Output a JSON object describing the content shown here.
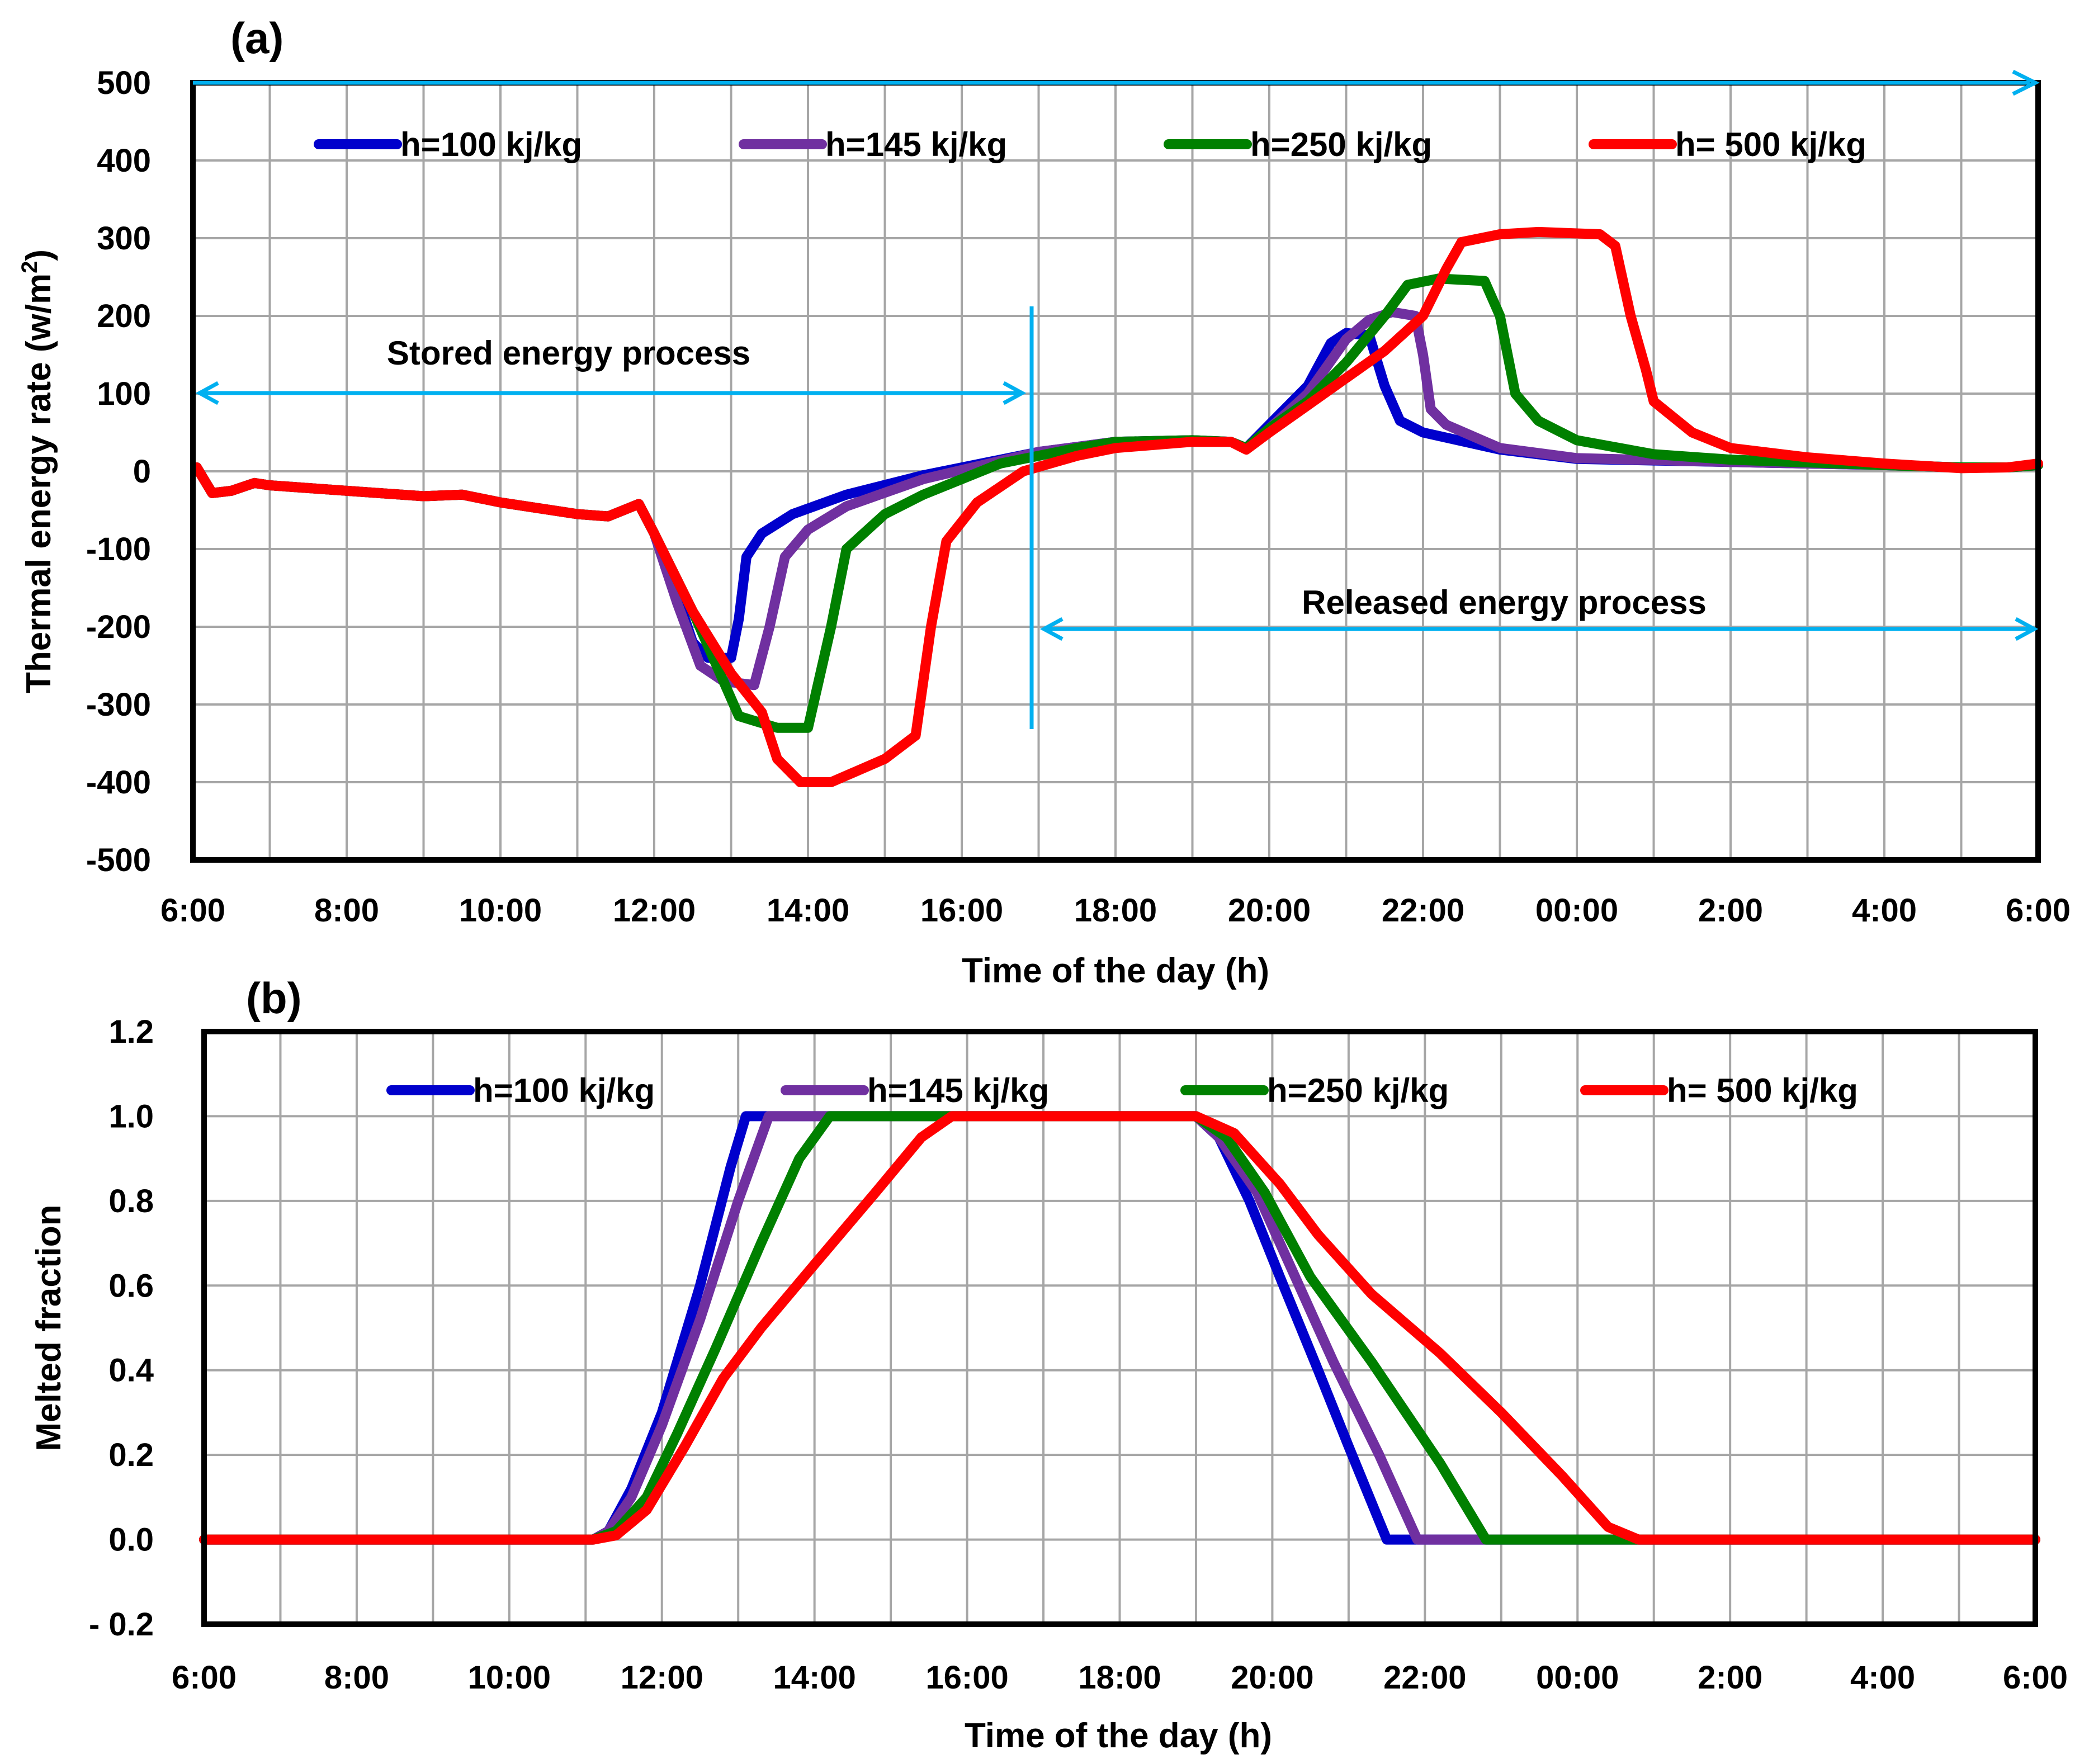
{
  "chart_data": [
    {
      "type": "line",
      "panel_label": "(a)",
      "xlabel": "Time of the day (h)",
      "ylabel": "Thermal energy  rate (w/m²)",
      "ylabel_main": "Thermal energy  rate (w/m",
      "ylabel_sup": "2",
      "ylabel_tail": ")",
      "x_tick_labels": [
        "6:00",
        "8:00",
        "10:00",
        "12:00",
        "14:00",
        "16:00",
        "18:00",
        "20:00",
        "22:00",
        "00:00",
        "2:00",
        "4:00",
        "6:00"
      ],
      "xlim": [
        6,
        30
      ],
      "ylim": [
        -500,
        500
      ],
      "y_ticks": [
        "500",
        "400",
        "300",
        "200",
        "100",
        "0",
        "-100",
        "-200",
        "-300",
        "-400",
        "-500"
      ],
      "grid": true,
      "legend_position": "top",
      "annotations": [
        {
          "text": "Stored energy process",
          "from": 6,
          "to": 16.85,
          "y": 100
        },
        {
          "text": "Released energy process",
          "from": 17.1,
          "to": 30,
          "y": -205
        }
      ],
      "divider_x": 16.9,
      "series": [
        {
          "name": "h=100 kj/kg",
          "color": "#0000cc",
          "points": [
            [
              6.05,
              5
            ],
            [
              6.25,
              -28
            ],
            [
              6.5,
              -25
            ],
            [
              6.8,
              -15
            ],
            [
              7.0,
              -18
            ],
            [
              8,
              -25
            ],
            [
              9,
              -32
            ],
            [
              9.5,
              -30
            ],
            [
              10,
              -40
            ],
            [
              11,
              -55
            ],
            [
              11.4,
              -58
            ],
            [
              11.8,
              -42
            ],
            [
              12.0,
              -80
            ],
            [
              12.3,
              -160
            ],
            [
              12.5,
              -220
            ],
            [
              12.7,
              -240
            ],
            [
              13.0,
              -240
            ],
            [
              13.1,
              -190
            ],
            [
              13.2,
              -110
            ],
            [
              13.4,
              -80
            ],
            [
              13.8,
              -55
            ],
            [
              14.5,
              -30
            ],
            [
              15.5,
              -5
            ],
            [
              17,
              25
            ],
            [
              18,
              38
            ],
            [
              19,
              40
            ],
            [
              19.5,
              38
            ],
            [
              19.7,
              30
            ],
            [
              20,
              60
            ],
            [
              20.5,
              110
            ],
            [
              20.8,
              165
            ],
            [
              21.0,
              178
            ],
            [
              21.3,
              175
            ],
            [
              21.5,
              110
            ],
            [
              21.7,
              65
            ],
            [
              22.0,
              50
            ],
            [
              23,
              28
            ],
            [
              24,
              16
            ],
            [
              26,
              12
            ],
            [
              28,
              8
            ],
            [
              29,
              5
            ],
            [
              29.6,
              5
            ],
            [
              30,
              8
            ]
          ]
        },
        {
          "name": "h=145 kj/kg",
          "color": "#7030a0",
          "points": [
            [
              6.05,
              5
            ],
            [
              6.25,
              -28
            ],
            [
              6.5,
              -25
            ],
            [
              6.8,
              -15
            ],
            [
              7.0,
              -18
            ],
            [
              8,
              -25
            ],
            [
              9,
              -32
            ],
            [
              9.5,
              -30
            ],
            [
              10,
              -40
            ],
            [
              11,
              -55
            ],
            [
              11.4,
              -58
            ],
            [
              11.8,
              -42
            ],
            [
              12.0,
              -80
            ],
            [
              12.3,
              -170
            ],
            [
              12.6,
              -250
            ],
            [
              12.9,
              -270
            ],
            [
              13.3,
              -275
            ],
            [
              13.5,
              -200
            ],
            [
              13.7,
              -110
            ],
            [
              14.0,
              -75
            ],
            [
              14.5,
              -45
            ],
            [
              15.5,
              -10
            ],
            [
              17,
              25
            ],
            [
              18,
              38
            ],
            [
              19,
              40
            ],
            [
              19.5,
              38
            ],
            [
              19.7,
              30
            ],
            [
              20,
              55
            ],
            [
              20.5,
              100
            ],
            [
              21.0,
              170
            ],
            [
              21.3,
              195
            ],
            [
              21.6,
              205
            ],
            [
              21.9,
              200
            ],
            [
              22.0,
              150
            ],
            [
              22.1,
              80
            ],
            [
              22.3,
              60
            ],
            [
              23,
              30
            ],
            [
              24,
              17
            ],
            [
              26,
              12
            ],
            [
              28,
              8
            ],
            [
              29,
              5
            ],
            [
              29.6,
              5
            ],
            [
              30,
              8
            ]
          ]
        },
        {
          "name": "h=250 kj/kg",
          "color": "#008000",
          "points": [
            [
              6.05,
              5
            ],
            [
              6.25,
              -28
            ],
            [
              6.5,
              -25
            ],
            [
              6.8,
              -15
            ],
            [
              7.0,
              -18
            ],
            [
              8,
              -25
            ],
            [
              9,
              -32
            ],
            [
              9.5,
              -30
            ],
            [
              10,
              -40
            ],
            [
              11,
              -55
            ],
            [
              11.4,
              -58
            ],
            [
              11.8,
              -42
            ],
            [
              12.0,
              -80
            ],
            [
              12.5,
              -180
            ],
            [
              12.9,
              -270
            ],
            [
              13.1,
              -315
            ],
            [
              13.6,
              -330
            ],
            [
              14.0,
              -330
            ],
            [
              14.3,
              -200
            ],
            [
              14.5,
              -100
            ],
            [
              15.0,
              -55
            ],
            [
              15.5,
              -30
            ],
            [
              16.5,
              10
            ],
            [
              17.5,
              30
            ],
            [
              18,
              38
            ],
            [
              19,
              40
            ],
            [
              19.5,
              38
            ],
            [
              19.7,
              30
            ],
            [
              20,
              55
            ],
            [
              20.5,
              90
            ],
            [
              21.0,
              140
            ],
            [
              21.5,
              200
            ],
            [
              21.8,
              240
            ],
            [
              22.2,
              248
            ],
            [
              22.8,
              245
            ],
            [
              23.0,
              200
            ],
            [
              23.2,
              100
            ],
            [
              23.5,
              65
            ],
            [
              24,
              40
            ],
            [
              25,
              22
            ],
            [
              26,
              15
            ],
            [
              28,
              8
            ],
            [
              29,
              5
            ],
            [
              29.6,
              5
            ],
            [
              30,
              8
            ]
          ]
        },
        {
          "name": "h= 500 kj/kg",
          "color": "#ff0000",
          "points": [
            [
              6.05,
              5
            ],
            [
              6.25,
              -28
            ],
            [
              6.5,
              -25
            ],
            [
              6.8,
              -15
            ],
            [
              7.0,
              -18
            ],
            [
              8,
              -25
            ],
            [
              9,
              -32
            ],
            [
              9.5,
              -30
            ],
            [
              10,
              -40
            ],
            [
              11,
              -55
            ],
            [
              11.4,
              -58
            ],
            [
              11.8,
              -42
            ],
            [
              12.0,
              -80
            ],
            [
              12.5,
              -180
            ],
            [
              13.0,
              -260
            ],
            [
              13.4,
              -310
            ],
            [
              13.6,
              -370
            ],
            [
              13.9,
              -400
            ],
            [
              14.3,
              -400
            ],
            [
              15.0,
              -370
            ],
            [
              15.4,
              -340
            ],
            [
              15.6,
              -200
            ],
            [
              15.8,
              -90
            ],
            [
              16.2,
              -40
            ],
            [
              16.8,
              0
            ],
            [
              17.5,
              20
            ],
            [
              18,
              30
            ],
            [
              19,
              38
            ],
            [
              19.5,
              38
            ],
            [
              19.7,
              28
            ],
            [
              20,
              50
            ],
            [
              20.5,
              85
            ],
            [
              21.0,
              120
            ],
            [
              21.5,
              155
            ],
            [
              22.0,
              200
            ],
            [
              22.3,
              260
            ],
            [
              22.5,
              295
            ],
            [
              23.0,
              305
            ],
            [
              23.5,
              308
            ],
            [
              24.3,
              305
            ],
            [
              24.5,
              290
            ],
            [
              24.7,
              200
            ],
            [
              24.9,
              130
            ],
            [
              25.0,
              90
            ],
            [
              25.5,
              50
            ],
            [
              26.0,
              30
            ],
            [
              27,
              18
            ],
            [
              28,
              10
            ],
            [
              29,
              4
            ],
            [
              29.6,
              5
            ],
            [
              30,
              10
            ]
          ]
        }
      ]
    },
    {
      "type": "line",
      "panel_label": "(b)",
      "xlabel": "Time of the day (h)",
      "ylabel": "Melted  fraction",
      "x_tick_labels": [
        "6:00",
        "8:00",
        "10:00",
        "12:00",
        "14:00",
        "16:00",
        "18:00",
        "20:00",
        "22:00",
        "00:00",
        "2:00",
        "4:00",
        "6:00"
      ],
      "xlim": [
        6,
        30
      ],
      "ylim": [
        -0.2,
        1.2
      ],
      "y_ticks": [
        "1.2",
        "1.0",
        "0.8",
        "0.6",
        "0.4",
        "0.2",
        "0.0",
        "- 0.2"
      ],
      "grid": true,
      "legend_position": "top",
      "series": [
        {
          "name": "h=100 kj/kg",
          "color": "#0000cc",
          "points": [
            [
              6,
              0
            ],
            [
              11.1,
              0
            ],
            [
              11.3,
              0.02
            ],
            [
              11.6,
              0.12
            ],
            [
              12,
              0.3
            ],
            [
              12.5,
              0.6
            ],
            [
              12.9,
              0.88
            ],
            [
              13.1,
              1.0
            ],
            [
              19,
              1.0
            ],
            [
              19.3,
              0.95
            ],
            [
              19.7,
              0.8
            ],
            [
              20.1,
              0.62
            ],
            [
              20.6,
              0.4
            ],
            [
              21.0,
              0.22
            ],
            [
              21.5,
              0.0
            ],
            [
              30,
              0
            ]
          ]
        },
        {
          "name": "h=145 kj/kg",
          "color": "#7030a0",
          "points": [
            [
              6,
              0
            ],
            [
              11.1,
              0
            ],
            [
              11.3,
              0.02
            ],
            [
              11.6,
              0.1
            ],
            [
              12,
              0.27
            ],
            [
              12.5,
              0.52
            ],
            [
              13,
              0.8
            ],
            [
              13.4,
              1.0
            ],
            [
              19,
              1.0
            ],
            [
              19.3,
              0.95
            ],
            [
              19.8,
              0.82
            ],
            [
              20.3,
              0.62
            ],
            [
              20.8,
              0.42
            ],
            [
              21.4,
              0.2
            ],
            [
              21.9,
              0.0
            ],
            [
              30,
              0
            ]
          ]
        },
        {
          "name": "h=250 kj/kg",
          "color": "#008000",
          "points": [
            [
              6,
              0
            ],
            [
              11.1,
              0
            ],
            [
              11.4,
              0.02
            ],
            [
              11.8,
              0.1
            ],
            [
              12.2,
              0.25
            ],
            [
              12.7,
              0.45
            ],
            [
              13.3,
              0.7
            ],
            [
              13.8,
              0.9
            ],
            [
              14.2,
              1.0
            ],
            [
              19,
              1.0
            ],
            [
              19.4,
              0.95
            ],
            [
              19.9,
              0.82
            ],
            [
              20.5,
              0.62
            ],
            [
              21.3,
              0.42
            ],
            [
              22.2,
              0.18
            ],
            [
              22.8,
              0.0
            ],
            [
              30,
              0
            ]
          ]
        },
        {
          "name": "h= 500 kj/kg",
          "color": "#ff0000",
          "points": [
            [
              6,
              0
            ],
            [
              11.1,
              0
            ],
            [
              11.4,
              0.01
            ],
            [
              11.8,
              0.07
            ],
            [
              12.3,
              0.22
            ],
            [
              12.8,
              0.38
            ],
            [
              13.3,
              0.5
            ],
            [
              14.0,
              0.65
            ],
            [
              14.8,
              0.82
            ],
            [
              15.4,
              0.95
            ],
            [
              15.8,
              1.0
            ],
            [
              19,
              1.0
            ],
            [
              19.5,
              0.96
            ],
            [
              20.1,
              0.84
            ],
            [
              20.6,
              0.72
            ],
            [
              21.3,
              0.58
            ],
            [
              22.2,
              0.44
            ],
            [
              23.0,
              0.3
            ],
            [
              23.8,
              0.15
            ],
            [
              24.4,
              0.03
            ],
            [
              24.8,
              0.0
            ],
            [
              30,
              0
            ]
          ]
        }
      ]
    }
  ]
}
